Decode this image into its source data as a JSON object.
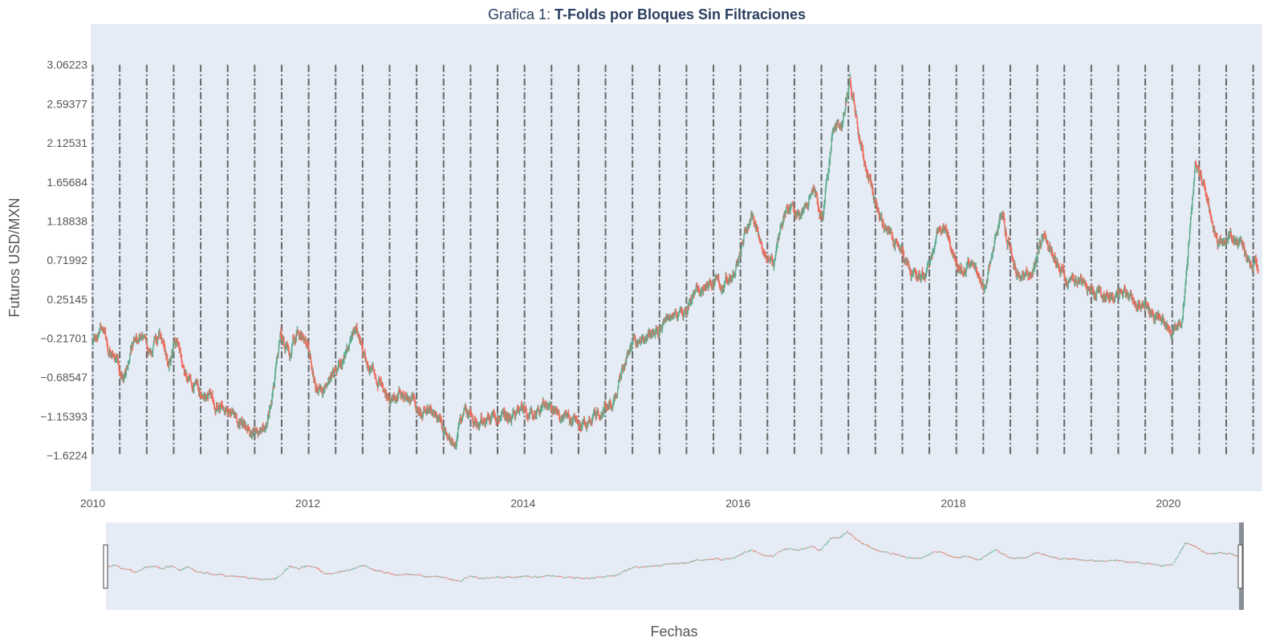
{
  "chart_data": {
    "type": "candlestick",
    "title_prefix": "Grafica 1: ",
    "title_bold": "T-Folds por Bloques Sin Filtraciones",
    "xlabel": "Fechas",
    "ylabel": "Futuros USD/MXN",
    "x_range": [
      "2009-12-25",
      "2020-11-15"
    ],
    "y_range": [
      -2.05,
      3.55
    ],
    "y_ticks": [
      -1.6224,
      -1.15393,
      -0.68547,
      -0.21701,
      0.25145,
      0.71992,
      1.18838,
      1.65684,
      2.12531,
      2.59377,
      3.06223
    ],
    "y_tick_labels": [
      "−1.6224",
      "−1.15393",
      "−0.68547",
      "−0.21701",
      "0.25145",
      "0.71992",
      "1.18838",
      "1.65684",
      "2.12531",
      "2.59377",
      "3.06223"
    ],
    "x_ticks": [
      "2010-01-01",
      "2012-01-01",
      "2014-01-01",
      "2016-01-01",
      "2018-01-01",
      "2020-01-01"
    ],
    "x_tick_labels": [
      "2010",
      "2012",
      "2014",
      "2016",
      "2018",
      "2020"
    ],
    "fold_lines": {
      "start": "2010-01-01",
      "end": "2020-10-15",
      "count": 44,
      "y_range": [
        -1.6224,
        3.06223
      ],
      "color": "#666666",
      "dash": "dashdot"
    },
    "series_path": [
      [
        "2010-01-01",
        -0.3
      ],
      [
        "2010-02-01",
        -0.05
      ],
      [
        "2010-03-01",
        -0.4
      ],
      [
        "2010-04-15",
        -0.7
      ],
      [
        "2010-05-15",
        -0.3
      ],
      [
        "2010-06-15",
        -0.15
      ],
      [
        "2010-07-15",
        -0.4
      ],
      [
        "2010-08-15",
        -0.2
      ],
      [
        "2010-09-15",
        -0.5
      ],
      [
        "2010-10-15",
        -0.3
      ],
      [
        "2010-11-15",
        -0.7
      ],
      [
        "2011-01-01",
        -0.85
      ],
      [
        "2011-02-15",
        -0.95
      ],
      [
        "2011-03-15",
        -1.0
      ],
      [
        "2011-05-01",
        -1.15
      ],
      [
        "2011-06-15",
        -1.3
      ],
      [
        "2011-07-15",
        -1.4
      ],
      [
        "2011-08-15",
        -1.2
      ],
      [
        "2011-09-01",
        -0.9
      ],
      [
        "2011-10-01",
        -0.2
      ],
      [
        "2011-11-01",
        -0.4
      ],
      [
        "2011-12-01",
        -0.1
      ],
      [
        "2012-01-01",
        -0.3
      ],
      [
        "2012-02-01",
        -0.85
      ],
      [
        "2012-03-15",
        -0.8
      ],
      [
        "2012-04-15",
        -0.5
      ],
      [
        "2012-05-15",
        -0.3
      ],
      [
        "2012-06-15",
        -0.1
      ],
      [
        "2012-07-15",
        -0.5
      ],
      [
        "2012-09-01",
        -0.75
      ],
      [
        "2012-10-15",
        -0.9
      ],
      [
        "2012-12-01",
        -0.95
      ],
      [
        "2013-01-15",
        -1.05
      ],
      [
        "2013-03-01",
        -1.15
      ],
      [
        "2013-04-15",
        -1.4
      ],
      [
        "2013-05-15",
        -1.5
      ],
      [
        "2013-06-15",
        -1.05
      ],
      [
        "2013-08-01",
        -1.25
      ],
      [
        "2013-09-15",
        -1.1
      ],
      [
        "2013-11-01",
        -1.2
      ],
      [
        "2013-12-15",
        -1.1
      ],
      [
        "2014-02-01",
        -1.15
      ],
      [
        "2014-03-15",
        -1.0
      ],
      [
        "2014-05-01",
        -1.1
      ],
      [
        "2014-06-15",
        -1.2
      ],
      [
        "2014-08-01",
        -1.25
      ],
      [
        "2014-09-15",
        -1.1
      ],
      [
        "2014-11-15",
        -0.95
      ],
      [
        "2015-01-01",
        -0.3
      ],
      [
        "2015-02-15",
        -0.25
      ],
      [
        "2015-04-01",
        -0.15
      ],
      [
        "2015-05-15",
        0.0
      ],
      [
        "2015-07-01",
        0.05
      ],
      [
        "2015-08-15",
        0.3
      ],
      [
        "2015-10-01",
        0.5
      ],
      [
        "2015-11-15",
        0.45
      ],
      [
        "2016-01-01",
        0.7
      ],
      [
        "2016-02-15",
        1.3
      ],
      [
        "2016-03-15",
        1.0
      ],
      [
        "2016-05-01",
        0.7
      ],
      [
        "2016-06-15",
        1.4
      ],
      [
        "2016-08-01",
        1.3
      ],
      [
        "2016-09-15",
        1.5
      ],
      [
        "2016-10-15",
        1.2
      ],
      [
        "2016-11-15",
        2.2
      ],
      [
        "2016-12-15",
        2.3
      ],
      [
        "2017-01-15",
        2.9
      ],
      [
        "2017-02-15",
        2.2
      ],
      [
        "2017-04-01",
        1.5
      ],
      [
        "2017-05-15",
        1.1
      ],
      [
        "2017-07-01",
        0.9
      ],
      [
        "2017-08-15",
        0.5
      ],
      [
        "2017-10-01",
        0.6
      ],
      [
        "2017-11-15",
        1.1
      ],
      [
        "2017-12-15",
        1.0
      ],
      [
        "2018-01-15",
        0.7
      ],
      [
        "2018-03-01",
        0.65
      ],
      [
        "2018-04-15",
        0.4
      ],
      [
        "2018-05-15",
        0.9
      ],
      [
        "2018-06-15",
        1.2
      ],
      [
        "2018-08-01",
        0.6
      ],
      [
        "2018-09-15",
        0.5
      ],
      [
        "2018-11-01",
        1.0
      ],
      [
        "2018-12-15",
        0.7
      ],
      [
        "2019-02-01",
        0.45
      ],
      [
        "2019-04-01",
        0.4
      ],
      [
        "2019-06-01",
        0.3
      ],
      [
        "2019-08-01",
        0.35
      ],
      [
        "2019-10-01",
        0.2
      ],
      [
        "2019-12-01",
        0.0
      ],
      [
        "2020-01-15",
        -0.15
      ],
      [
        "2020-02-15",
        0.0
      ],
      [
        "2020-03-15",
        1.2
      ],
      [
        "2020-04-01",
        1.9
      ],
      [
        "2020-05-15",
        1.5
      ],
      [
        "2020-06-15",
        0.9
      ],
      [
        "2020-07-15",
        1.0
      ],
      [
        "2020-09-01",
        0.9
      ],
      [
        "2020-10-15",
        0.6
      ],
      [
        "2020-11-01",
        0.6
      ]
    ],
    "increasing_color": "#5eaa8c",
    "decreasing_color": "#ee6a5a"
  }
}
